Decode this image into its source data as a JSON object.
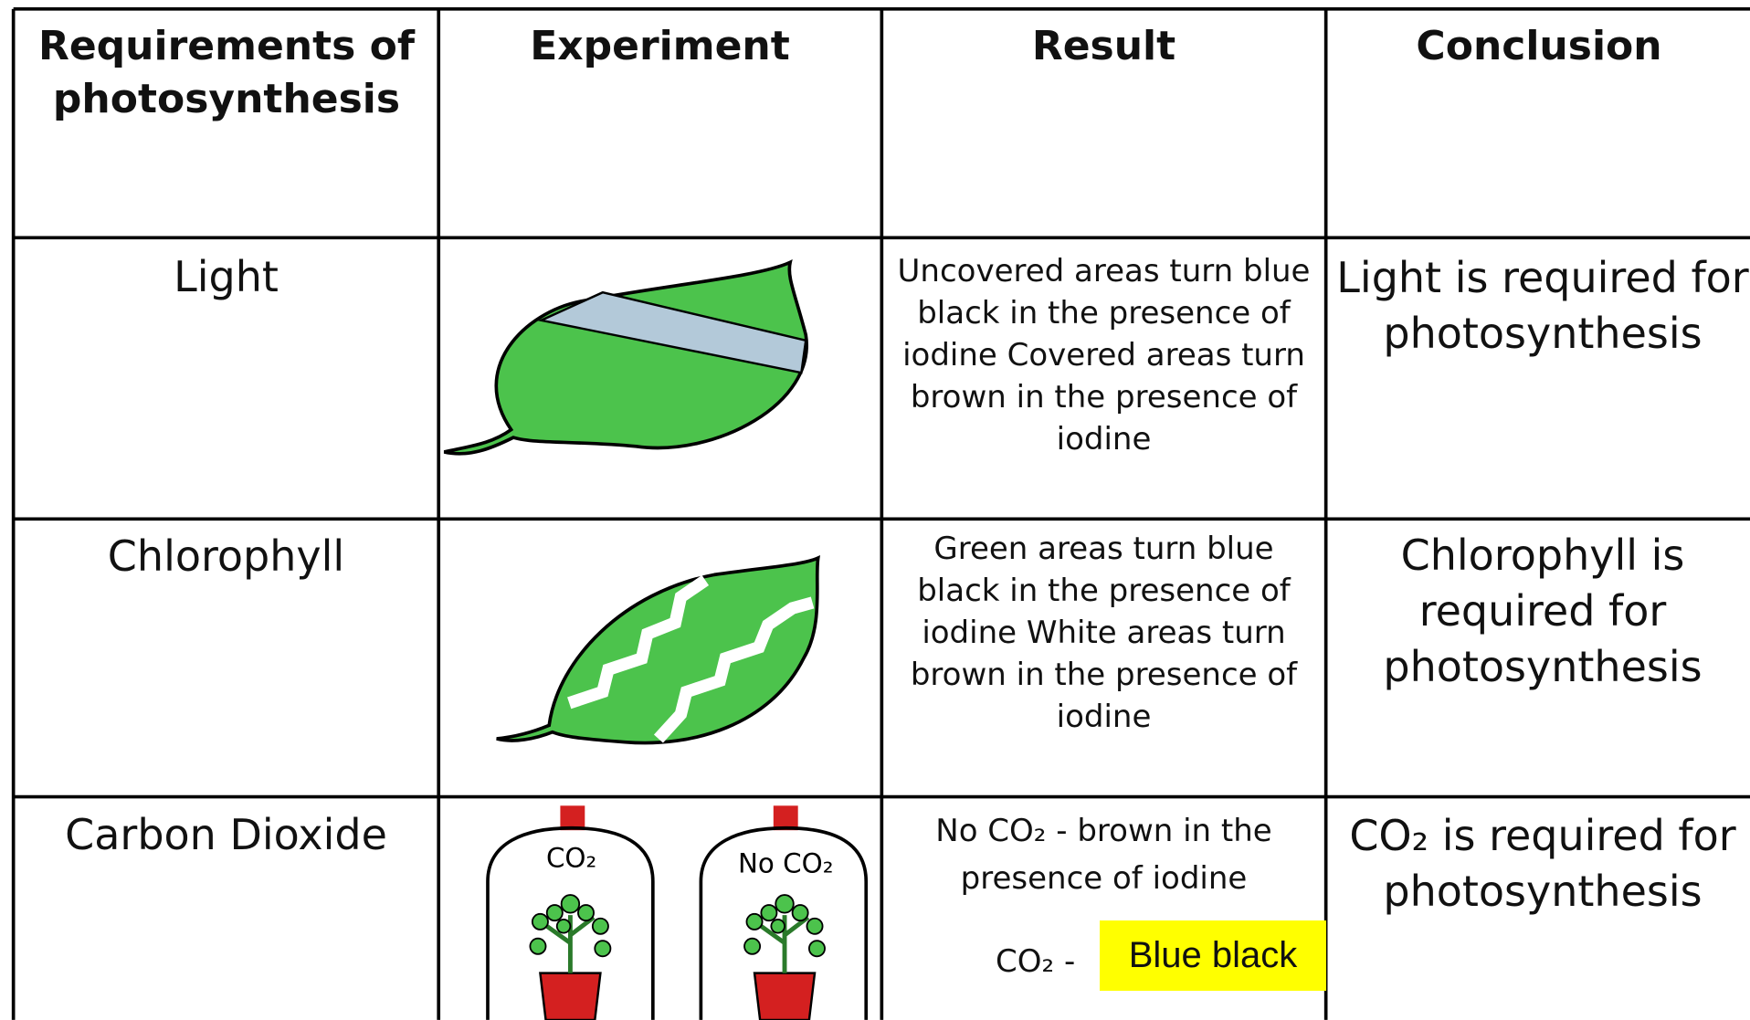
{
  "table": {
    "header": [
      "Requirements of photosynthesis",
      "Experiment",
      "Result",
      "Conclusion"
    ],
    "rows": [
      {
        "requirement": "Light",
        "result": "Uncovered areas turn blue black in the presence of iodine Covered areas turn brown in the presence of iodine",
        "conclusion": "Light is required for photosynthesis"
      },
      {
        "requirement": "Chlorophyll",
        "result": "Green areas turn blue black in the presence of iodine White areas turn brown in the presence of iodine",
        "conclusion": "Chlorophyll is required for photosynthesis"
      },
      {
        "requirement": "Carbon Dioxide",
        "experiment_labels": [
          "CO₂",
          "No CO₂"
        ],
        "result": "No CO₂ - brown in the presence of iodine",
        "result_note": "CO₂ -",
        "highlight": "Blue black",
        "conclusion": "CO₂ is required for photosynthesis"
      }
    ]
  }
}
